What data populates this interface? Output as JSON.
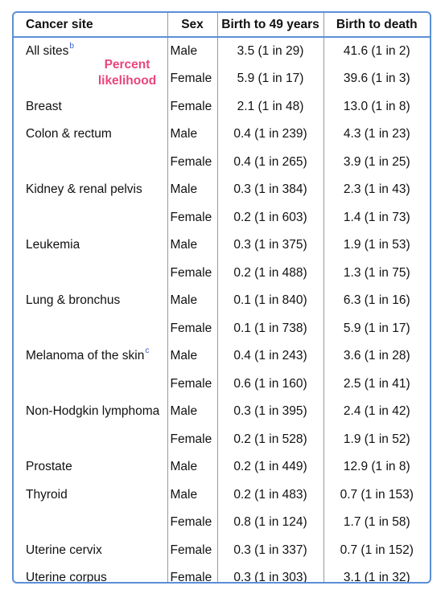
{
  "columns": {
    "site": "Cancer site",
    "sex": "Sex",
    "age49": "Birth to 49 years",
    "death": "Birth to death"
  },
  "overlay_label": [
    "Percent",
    "likelihood"
  ],
  "rows": [
    {
      "site": "All sites",
      "note": "b",
      "sex": "Male",
      "age49": "3.5 (1 in 29)",
      "death": "41.6 (1 in 2)"
    },
    {
      "site": "",
      "note": "",
      "sex": "Female",
      "age49": "5.9 (1 in 17)",
      "death": "39.6 (1 in 3)"
    },
    {
      "site": "Breast",
      "note": "",
      "sex": "Female",
      "age49": "2.1 (1 in 48)",
      "death": "13.0 (1 in 8)"
    },
    {
      "site": "Colon & rectum",
      "note": "",
      "sex": "Male",
      "age49": "0.4 (1 in 239)",
      "death": "4.3 (1 in 23)"
    },
    {
      "site": "",
      "note": "",
      "sex": "Female",
      "age49": "0.4 (1 in 265)",
      "death": "3.9 (1 in 25)"
    },
    {
      "site": "Kidney & renal pelvis",
      "note": "",
      "sex": "Male",
      "age49": "0.3 (1 in 384)",
      "death": "2.3 (1 in 43)"
    },
    {
      "site": "",
      "note": "",
      "sex": "Female",
      "age49": "0.2 (1 in 603)",
      "death": "1.4 (1 in 73)"
    },
    {
      "site": "Leukemia",
      "note": "",
      "sex": "Male",
      "age49": "0.3 (1 in 375)",
      "death": "1.9 (1 in 53)"
    },
    {
      "site": "",
      "note": "",
      "sex": "Female",
      "age49": "0.2 (1 in 488)",
      "death": "1.3 (1 in 75)"
    },
    {
      "site": "Lung & bronchus",
      "note": "",
      "sex": "Male",
      "age49": "0.1 (1 in 840)",
      "death": "6.3 (1 in 16)"
    },
    {
      "site": "",
      "note": "",
      "sex": "Female",
      "age49": "0.1 (1 in 738)",
      "death": "5.9 (1 in 17)"
    },
    {
      "site": "Melanoma of the skin",
      "note": "c",
      "sex": "Male",
      "age49": "0.4 (1 in 243)",
      "death": "3.6 (1 in 28)"
    },
    {
      "site": "",
      "note": "",
      "sex": "Female",
      "age49": "0.6 (1 in 160)",
      "death": "2.5 (1 in 41)"
    },
    {
      "site": "Non-Hodgkin lymphoma",
      "note": "",
      "sex": "Male",
      "age49": "0.3 (1 in 395)",
      "death": "2.4 (1 in 42)"
    },
    {
      "site": "",
      "note": "",
      "sex": "Female",
      "age49": "0.2 (1 in 528)",
      "death": "1.9 (1 in 52)"
    },
    {
      "site": "Prostate",
      "note": "",
      "sex": "Male",
      "age49": "0.2 (1 in 449)",
      "death": "12.9 (1 in 8)"
    },
    {
      "site": "Thyroid",
      "note": "",
      "sex": "Male",
      "age49": "0.2 (1 in 483)",
      "death": "0.7 (1 in 153)"
    },
    {
      "site": "",
      "note": "",
      "sex": "Female",
      "age49": "0.8 (1 in 124)",
      "death": "1.7 (1 in 58)"
    },
    {
      "site": "Uterine cervix",
      "note": "",
      "sex": "Female",
      "age49": "0.3 (1 in 337)",
      "death": "0.7 (1 in 152)"
    },
    {
      "site": "Uterine corpus",
      "note": "",
      "sex": "Female",
      "age49": "0.3 (1 in 303)",
      "death": "3.1 (1 in 32)"
    }
  ],
  "colors": {
    "border": "#5b8fd6",
    "overlay": "#e8467c",
    "note": "#3c63c9"
  }
}
